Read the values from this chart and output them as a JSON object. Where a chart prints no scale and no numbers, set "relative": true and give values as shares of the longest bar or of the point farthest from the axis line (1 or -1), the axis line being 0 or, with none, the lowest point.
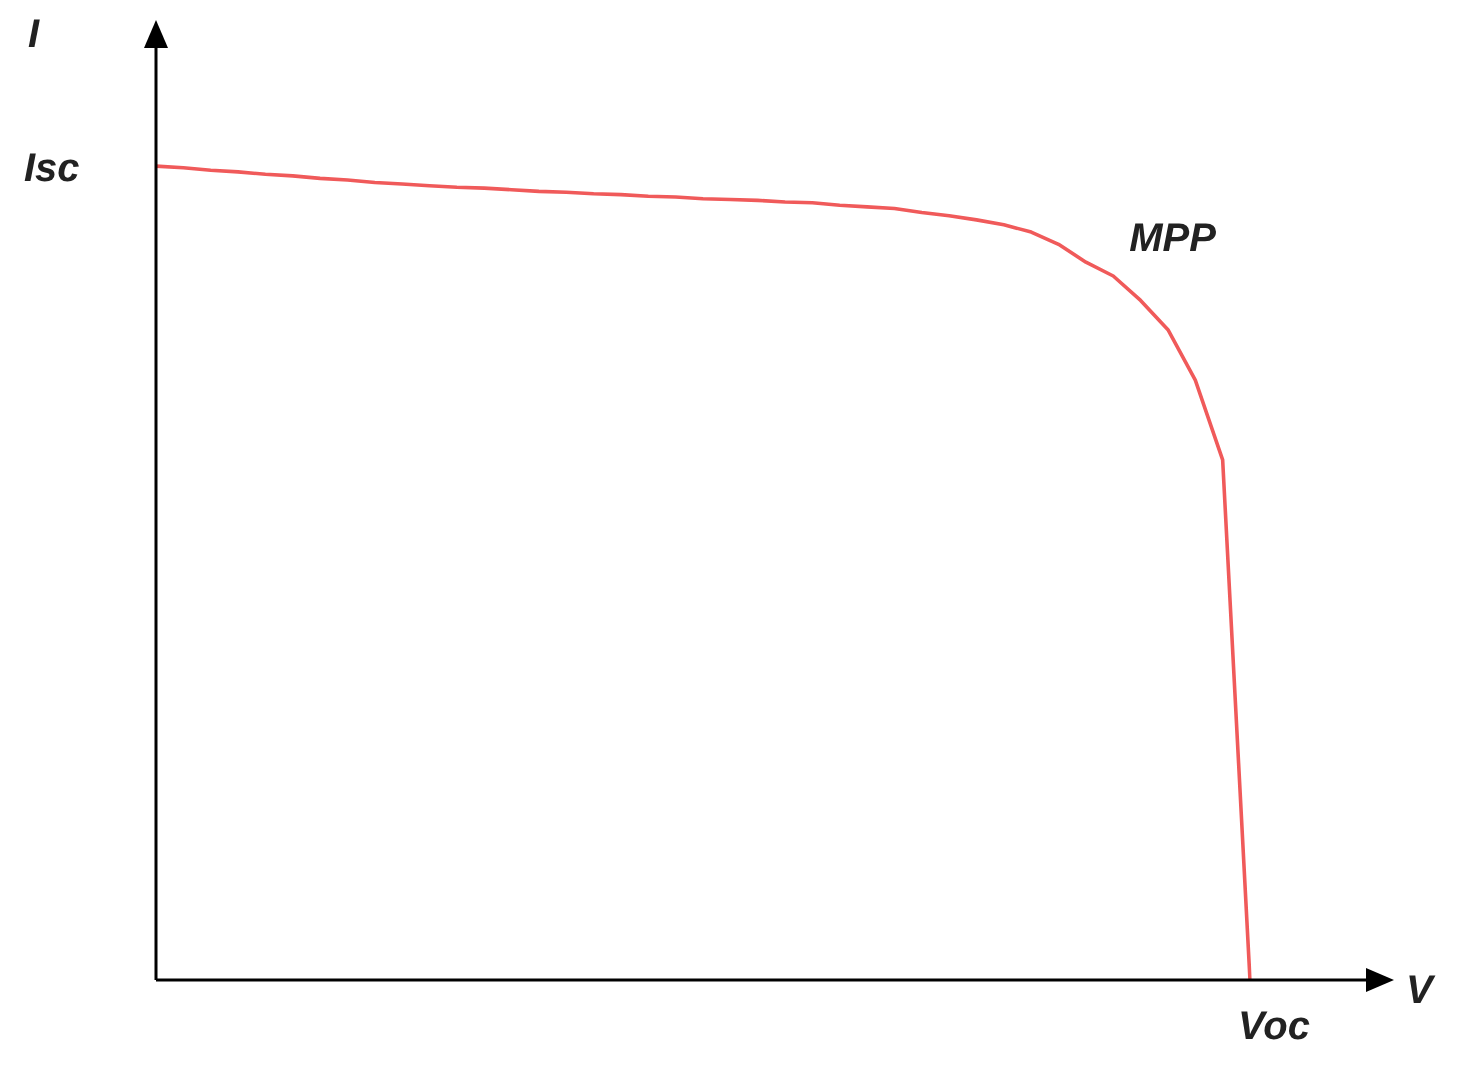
{
  "chart_data": {
    "type": "line",
    "relative": true,
    "xlabel": "V",
    "ylabel": "I",
    "categories": [
      null,
      null,
      null,
      null,
      null,
      null,
      null,
      null,
      null,
      null,
      null,
      null,
      null,
      null,
      null,
      null,
      null,
      null,
      null,
      null,
      null,
      null,
      null,
      null,
      null,
      null,
      null,
      null,
      null,
      null,
      null,
      null,
      null,
      null,
      null,
      null,
      null,
      null,
      null,
      null,
      null
    ],
    "series": [
      {
        "color": "#f05a5a",
        "values": [
          1.0,
          0.998,
          0.995,
          0.993,
          0.99,
          0.988,
          0.985,
          0.983,
          0.98,
          0.978,
          0.976,
          0.974,
          0.973,
          0.971,
          0.969,
          0.968,
          0.966,
          0.965,
          0.963,
          0.962,
          0.96,
          0.959,
          0.958,
          0.956,
          0.955,
          0.952,
          0.95,
          0.948,
          0.943,
          0.939,
          0.934,
          0.928,
          0.919,
          0.904,
          0.882,
          0.865,
          0.835,
          0.799,
          0.737,
          0.639,
          0
        ]
      }
    ],
    "annotations": [
      "Isc",
      "MPP",
      "Voc"
    ],
    "grid": false,
    "legend": false,
    "marker": "none",
    "line_style": "solid"
  }
}
